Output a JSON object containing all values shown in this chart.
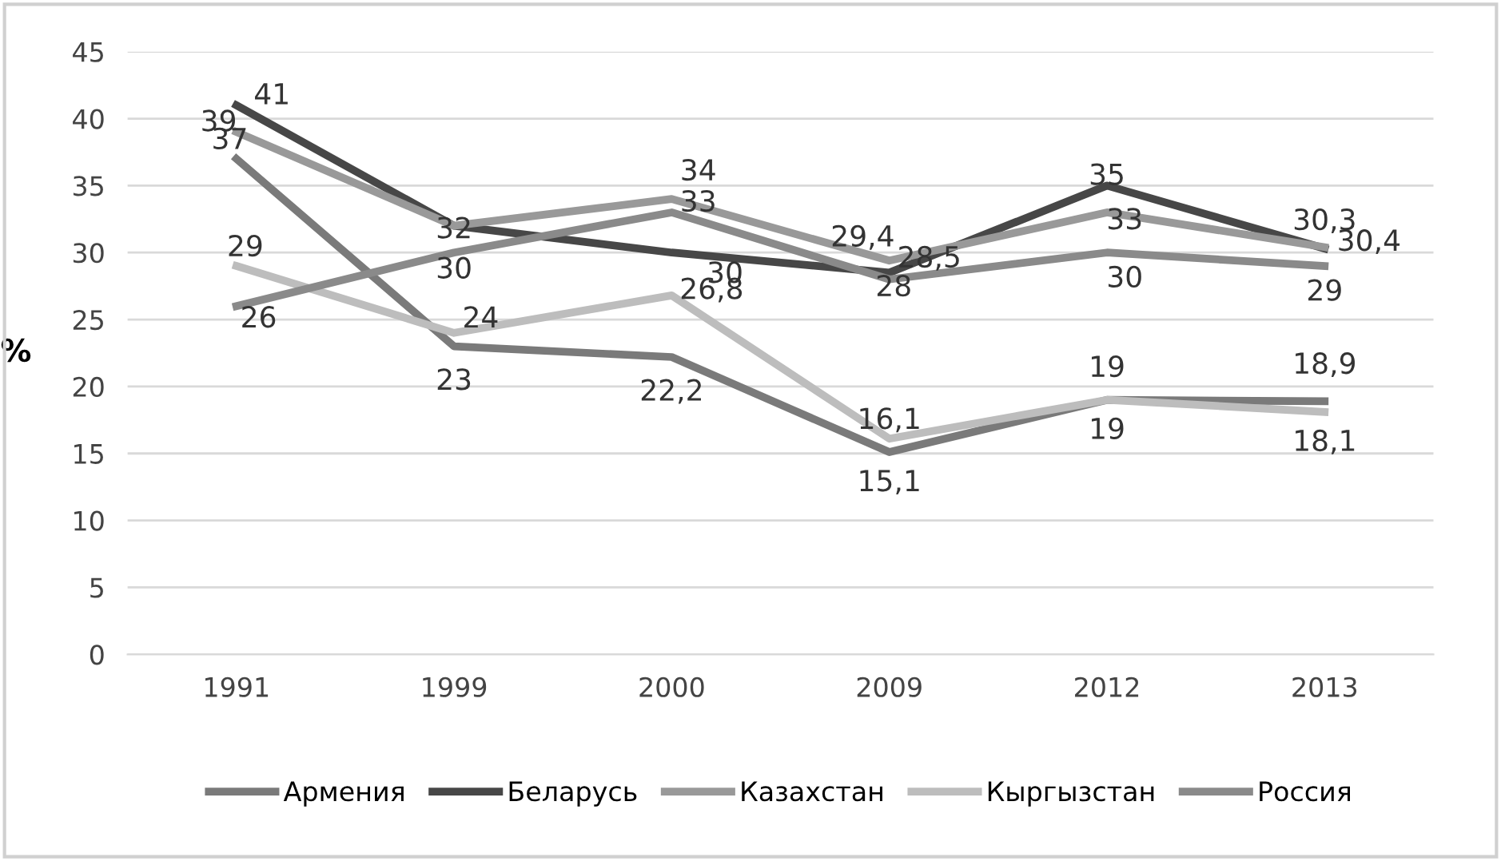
{
  "chart_data": {
    "type": "line",
    "ylabel": "%",
    "categories": [
      "1991",
      "1999",
      "2000",
      "2009",
      "2012",
      "2013"
    ],
    "series": [
      {
        "name": "Армения",
        "color": "#7a7a7a",
        "values": [
          37,
          23,
          22.2,
          15.1,
          19,
          18.9
        ],
        "value_labels": [
          "37",
          "23",
          "22,2",
          "15,1",
          "19",
          "18,9"
        ]
      },
      {
        "name": "Беларусь",
        "color": "#474747",
        "values": [
          41,
          32,
          30,
          28.5,
          35,
          30.3
        ],
        "value_labels": [
          "41",
          "32",
          "30",
          "28,5",
          "35",
          "30,3"
        ]
      },
      {
        "name": "Казахстан",
        "color": "#999999",
        "values": [
          39,
          32,
          34,
          29.4,
          33,
          30.4
        ],
        "value_labels": [
          "39",
          null,
          "34",
          "29,4",
          "33",
          "30,4"
        ]
      },
      {
        "name": "Кыргызстан",
        "color": "#bdbdbd",
        "values": [
          29,
          24,
          26.8,
          16.1,
          19,
          18.1
        ],
        "value_labels": [
          "29",
          "24",
          "26,8",
          "16,1",
          "19",
          "18,1"
        ]
      },
      {
        "name": "Россия",
        "color": "#8a8a8a",
        "values": [
          26,
          30,
          33,
          28,
          30,
          29
        ],
        "value_labels": [
          "26",
          "30",
          "33",
          "28",
          "30",
          "29"
        ]
      }
    ],
    "ylim": [
      0,
      45
    ],
    "yticks": [
      0,
      5,
      10,
      15,
      20,
      25,
      30,
      35,
      40,
      45
    ],
    "grid": "y",
    "legend": "bottom",
    "marker": "none",
    "line_style": "solid"
  }
}
